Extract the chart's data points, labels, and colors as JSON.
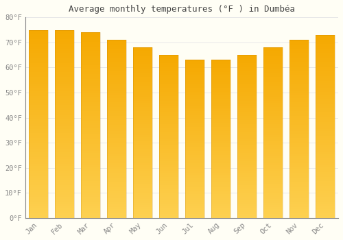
{
  "title": "Average monthly temperatures (°F ) in Dumbéa",
  "months": [
    "Jan",
    "Feb",
    "Mar",
    "Apr",
    "May",
    "Jun",
    "Jul",
    "Aug",
    "Sep",
    "Oct",
    "Nov",
    "Dec"
  ],
  "values": [
    75,
    75,
    74,
    71,
    68,
    65,
    63,
    63,
    65,
    68,
    71,
    73
  ],
  "bar_color_top": "#F5A800",
  "bar_color_bottom": "#FDD060",
  "bar_right_edge_color": "#D08000",
  "background_color": "#FFFEF5",
  "grid_color": "#E8E8E8",
  "ylim": [
    0,
    80
  ],
  "yticks": [
    0,
    10,
    20,
    30,
    40,
    50,
    60,
    70,
    80
  ],
  "title_fontsize": 9,
  "tick_fontsize": 7.5,
  "figsize": [
    5.0,
    3.5
  ],
  "dpi": 100
}
